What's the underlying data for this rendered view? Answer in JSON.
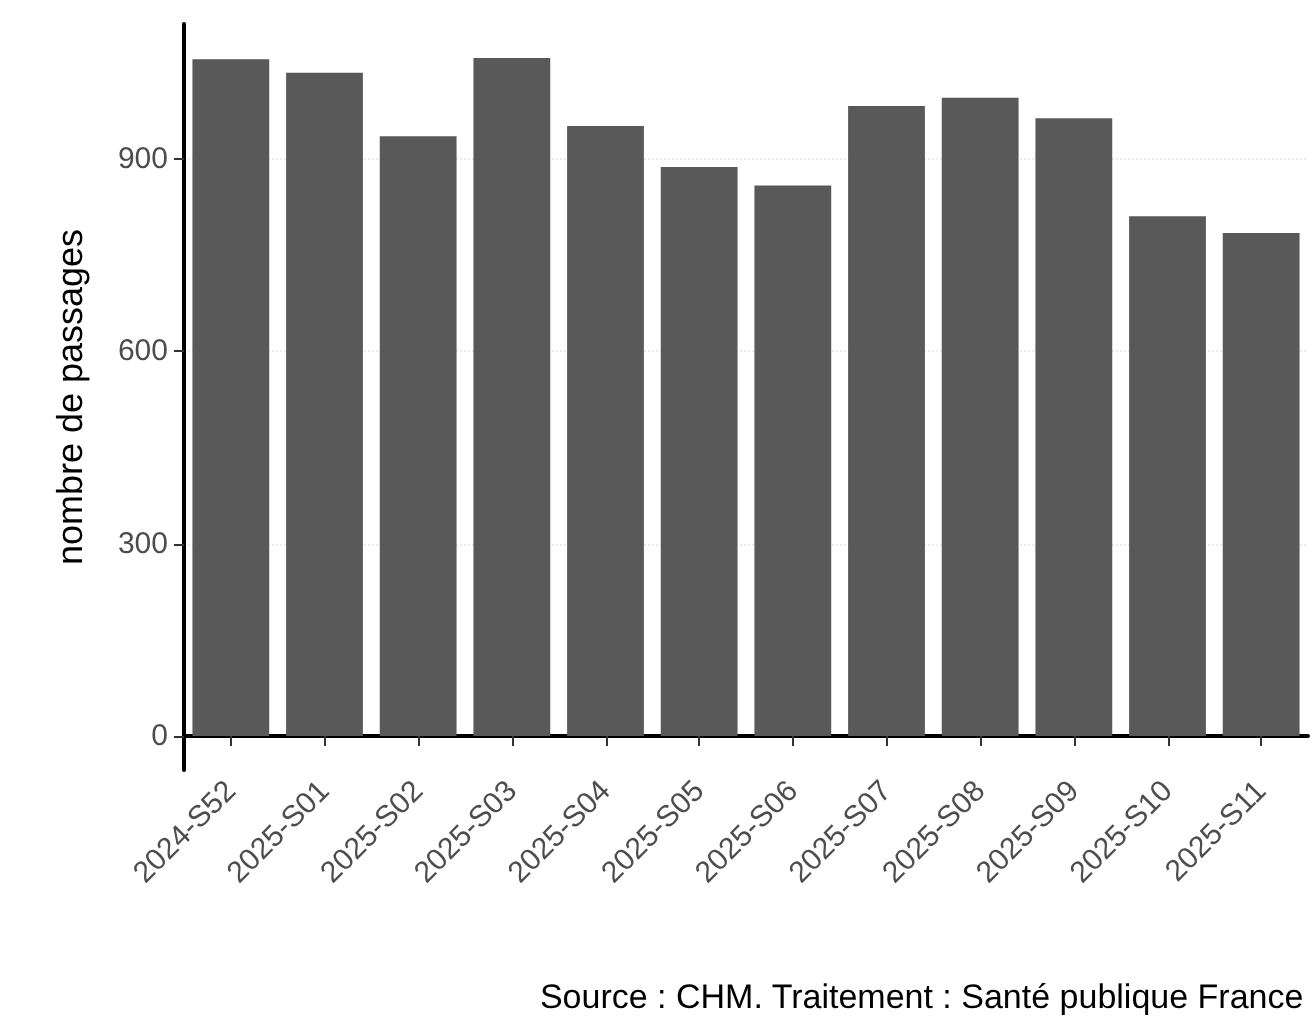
{
  "chart_data": {
    "type": "bar",
    "ylabel": "nombre de passages",
    "categories": [
      "2024-S52",
      "2025-S01",
      "2025-S02",
      "2025-S03",
      "2025-S04",
      "2025-S05",
      "2025-S06",
      "2025-S07",
      "2025-S08",
      "2025-S09",
      "2025-S10",
      "2025-S11"
    ],
    "values": [
      1056,
      1035,
      936,
      1058,
      952,
      888,
      859,
      983,
      996,
      964,
      811,
      785
    ],
    "color": "#595959",
    "ylim": [
      -53,
      1111
    ],
    "yticks": [
      0,
      300,
      600,
      900
    ],
    "grid": "y",
    "annotations": [
      "Source : CHM. Traitement : Santé publique France"
    ]
  }
}
